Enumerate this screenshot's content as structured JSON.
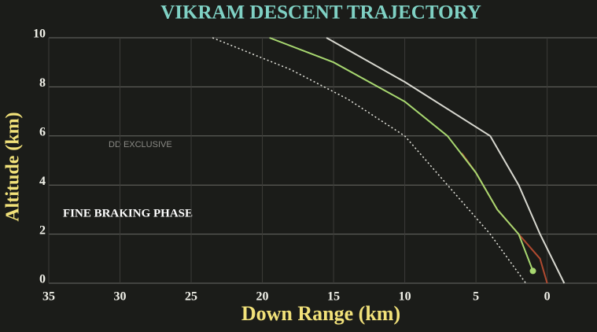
{
  "chart_data": {
    "type": "line",
    "title": "VIKRAM DESCENT TRAJECTORY",
    "x_label": "Down Range (km)",
    "y_label": "Altitude (km)",
    "annotations": [
      "FINE BRAKING PHASE",
      "DD EXCLUSIVE"
    ],
    "xlim": [
      35,
      -3.5
    ],
    "ylim": [
      0,
      10
    ],
    "xticks": [
      35,
      30,
      25,
      20,
      15,
      10,
      5,
      0
    ],
    "yticks": [
      0,
      2,
      4,
      6,
      8,
      10
    ],
    "grid": true,
    "series": [
      {
        "color": "#e8e8e0",
        "style": "dotted",
        "x": [
          23.5,
          18,
          14,
          10,
          7,
          4,
          1.5
        ],
        "values": [
          10,
          8.7,
          7.5,
          6,
          4,
          2,
          0
        ]
      },
      {
        "color": "#d8d8d0",
        "style": "solid",
        "x": [
          15.5,
          10,
          4,
          2,
          0.5,
          -1.2
        ],
        "values": [
          10,
          8.2,
          6,
          4,
          2,
          0
        ]
      },
      {
        "color": "#b04a30",
        "style": "solid",
        "x": [
          6,
          5,
          3.5,
          2,
          0.5,
          0
        ],
        "values": [
          5.3,
          4.5,
          3,
          2,
          1,
          0
        ]
      },
      {
        "color": "#a8d870",
        "style": "solid",
        "end_marker": true,
        "x": [
          19.5,
          15,
          10,
          7,
          5,
          3.5,
          2,
          1
        ],
        "values": [
          10,
          9,
          7.4,
          6,
          4.5,
          3,
          2,
          0.5
        ]
      }
    ]
  }
}
